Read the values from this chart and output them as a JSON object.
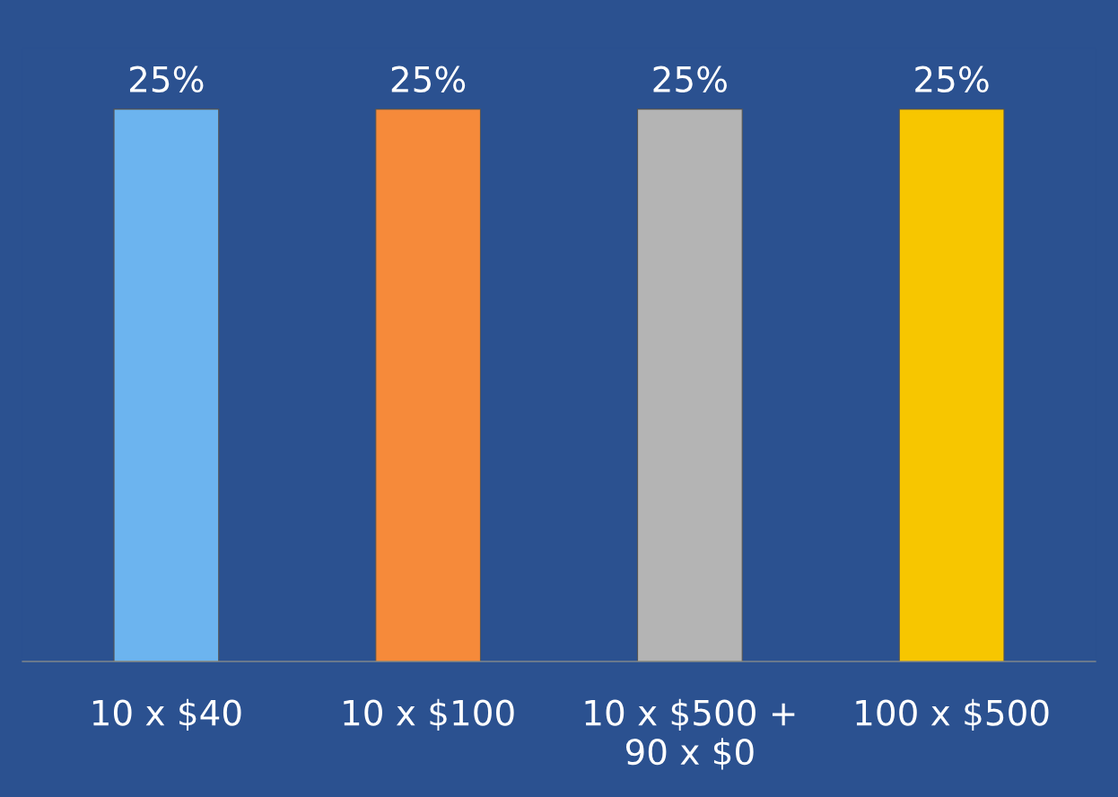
{
  "chart_data": {
    "type": "bar",
    "categories": [
      "10 x $40",
      "10 x $100",
      "10 x $500 +\n90 x $0",
      "100 x $500"
    ],
    "values": [
      25,
      25,
      25,
      25
    ],
    "colors": [
      "#6cb4ef",
      "#f68a3a",
      "#b4b4b4",
      "#f7c600"
    ],
    "value_labels": [
      "25%",
      "25%",
      "25%",
      "25%"
    ],
    "grid": false,
    "legend": false
  }
}
